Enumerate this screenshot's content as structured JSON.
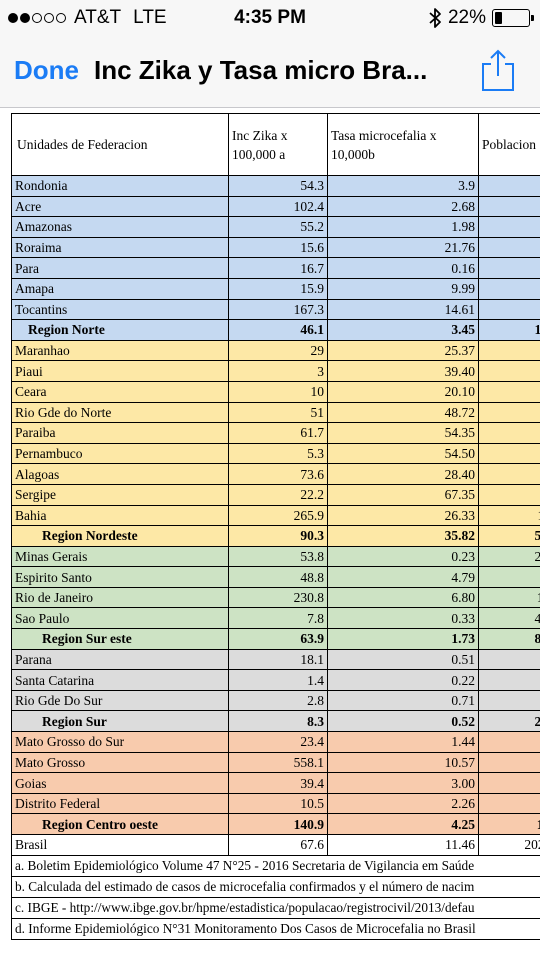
{
  "status": {
    "carrier": "AT&T",
    "network": "LTE",
    "time": "4:35 PM",
    "battery": "22%",
    "battery_level": 0.22,
    "signal_bars": 2
  },
  "nav": {
    "done_label": "Done",
    "title": "Inc Zika y Tasa micro Bra..."
  },
  "table": {
    "headers": [
      "Unidades de Federacion",
      "Inc Zika x 100,000 a",
      "Tasa microcefalia x 10,000b",
      "Poblacion"
    ],
    "rows": [
      {
        "name": "Rondonia",
        "zika": "54.3",
        "micro": "3.9",
        "pob": "",
        "color": "blue",
        "summary": false
      },
      {
        "name": "Acre",
        "zika": "102.4",
        "micro": "2.68",
        "pob": "",
        "color": "blue",
        "summary": false
      },
      {
        "name": "Amazonas",
        "zika": "55.2",
        "micro": "1.98",
        "pob": "",
        "color": "blue",
        "summary": false
      },
      {
        "name": "Roraima",
        "zika": "15.6",
        "micro": "21.76",
        "pob": "",
        "color": "blue",
        "summary": false
      },
      {
        "name": "Para",
        "zika": "16.7",
        "micro": "0.16",
        "pob": "8",
        "color": "blue",
        "summary": false
      },
      {
        "name": "Amapa",
        "zika": "15.9",
        "micro": "9.99",
        "pob": "",
        "color": "blue",
        "summary": false
      },
      {
        "name": "Tocantins",
        "zika": "167.3",
        "micro": "14.61",
        "pob": "",
        "color": "blue",
        "summary": false
      },
      {
        "name": "Region Norte",
        "zika": "46.1",
        "micro": "3.45",
        "pob": "17",
        "color": "blue",
        "summary": true
      },
      {
        "name": "Maranhao",
        "zika": "29",
        "micro": "25.37",
        "pob": "",
        "color": "yellow",
        "summary": false
      },
      {
        "name": "Piaui",
        "zika": "3",
        "micro": "39.40",
        "pob": "",
        "color": "yellow",
        "summary": false
      },
      {
        "name": "Ceara",
        "zika": "10",
        "micro": "20.10",
        "pob": "8",
        "color": "yellow",
        "summary": false
      },
      {
        "name": "Rio Gde do Norte",
        "zika": "51",
        "micro": "48.72",
        "pob": "",
        "color": "yellow",
        "summary": false
      },
      {
        "name": "Paraiba",
        "zika": "61.7",
        "micro": "54.35",
        "pob": "",
        "color": "yellow",
        "summary": false
      },
      {
        "name": "Pernambuco",
        "zika": "5.3",
        "micro": "54.50",
        "pob": "9",
        "color": "yellow",
        "summary": false
      },
      {
        "name": "Alagoas",
        "zika": "73.6",
        "micro": "28.40",
        "pob": "",
        "color": "yellow",
        "summary": false
      },
      {
        "name": "Sergipe",
        "zika": "22.2",
        "micro": "67.35",
        "pob": "",
        "color": "yellow",
        "summary": false
      },
      {
        "name": "Bahia",
        "zika": "265.9",
        "micro": "26.33",
        "pob": "1:",
        "color": "yellow",
        "summary": false
      },
      {
        "name": "Region Nordeste",
        "zika": "90.3",
        "micro": "35.82",
        "pob": "56",
        "color": "yellow",
        "summary": true
      },
      {
        "name": "Minas Gerais",
        "zika": "53.8",
        "micro": "0.23",
        "pob": "20",
        "color": "green",
        "summary": false
      },
      {
        "name": "Espirito Santo",
        "zika": "48.8",
        "micro": "4.79",
        "pob": "",
        "color": "green",
        "summary": false
      },
      {
        "name": "Rio de Janeiro",
        "zika": "230.8",
        "micro": "6.80",
        "pob": "1!",
        "color": "green",
        "summary": false
      },
      {
        "name": "Sao Paulo",
        "zika": "7.8",
        "micro": "0.33",
        "pob": "44",
        "color": "green",
        "summary": false
      },
      {
        "name": "Region Sur este",
        "zika": "63.9",
        "micro": "1.73",
        "pob": "85",
        "color": "green",
        "summary": true
      },
      {
        "name": "Parana",
        "zika": "18.1",
        "micro": "0.51",
        "pob": "1",
        "color": "gray",
        "summary": false
      },
      {
        "name": "Santa Catarina",
        "zika": "1.4",
        "micro": "0.22",
        "pob": "",
        "color": "gray",
        "summary": false
      },
      {
        "name": "Rio Gde Do Sur",
        "zika": "2.8",
        "micro": "0.71",
        "pob": "1",
        "color": "gray",
        "summary": false
      },
      {
        "name": "Region Sur",
        "zika": "8.3",
        "micro": "0.52",
        "pob": "29",
        "color": "gray",
        "summary": true
      },
      {
        "name": "Mato Grosso do Sur",
        "zika": "23.4",
        "micro": "1.44",
        "pob": "",
        "color": "orange",
        "summary": false
      },
      {
        "name": "Mato Grosso",
        "zika": "558.1",
        "micro": "10.57",
        "pob": "",
        "color": "orange",
        "summary": false
      },
      {
        "name": "Goias",
        "zika": "39.4",
        "micro": "3.00",
        "pob": "",
        "color": "orange",
        "summary": false
      },
      {
        "name": "Distrito Federal",
        "zika": "10.5",
        "micro": "2.26",
        "pob": "",
        "color": "orange",
        "summary": false
      },
      {
        "name": "Region Centro oeste",
        "zika": "140.9",
        "micro": "4.25",
        "pob": "1!",
        "color": "orange",
        "summary": true
      },
      {
        "name": "Brasil",
        "zika": "67.6",
        "micro": "11.46",
        "pob": "202.",
        "color": "white",
        "summary": false
      }
    ],
    "notes": [
      "a. Boletim Epidemiológico Volume 47 N°25 - 2016 Secretaria de Vigilancia em Saúde",
      "b. Calculada del estimado de casos de microcefalia confirmados y el número de nacim",
      "c. IBGE - http://www.ibge.gov.br/hpme/estadistica/populacao/registrocivil/2013/defau",
      "d. Informe Epidemiológico N°31 Monitoramento Dos Casos de Microcefalia no Brasil"
    ]
  }
}
